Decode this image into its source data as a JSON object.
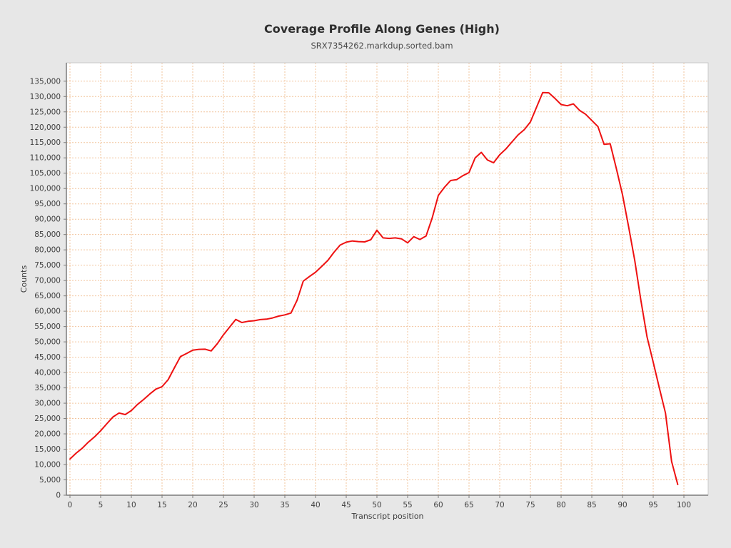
{
  "page": {
    "background": "#e7e7e7"
  },
  "chart_data": {
    "type": "line",
    "title": "Coverage Profile Along Genes (High)",
    "subtitle": "SRX7354262.markdup.sorted.bam",
    "xlabel": "Transcript position",
    "ylabel": "Counts",
    "xlim": [
      -0.58,
      103.95
    ],
    "ylim": [
      0,
      141000
    ],
    "x_ticks": [
      0,
      5,
      10,
      15,
      20,
      25,
      30,
      35,
      40,
      45,
      50,
      55,
      60,
      65,
      70,
      75,
      80,
      85,
      90,
      95,
      100
    ],
    "y_ticks": [
      0,
      5000,
      10000,
      15000,
      20000,
      25000,
      30000,
      35000,
      40000,
      45000,
      50000,
      55000,
      60000,
      65000,
      70000,
      75000,
      80000,
      85000,
      90000,
      95000,
      100000,
      105000,
      110000,
      115000,
      120000,
      125000,
      130000,
      135000
    ],
    "grid": true,
    "legend_position": "none",
    "series": [
      {
        "name": "coverage",
        "color": "#ee1111",
        "x_start": 0,
        "values": [
          11800,
          13700,
          15300,
          17300,
          19000,
          21000,
          23300,
          25500,
          26800,
          26300,
          27600,
          29600,
          31200,
          33000,
          34600,
          35400,
          37700,
          41500,
          45200,
          46200,
          47300,
          47550,
          47600,
          47050,
          49400,
          52300,
          54800,
          57300,
          56300,
          56700,
          56900,
          57250,
          57400,
          57800,
          58400,
          58800,
          59400,
          63600,
          69800,
          71300,
          72700,
          74600,
          76550,
          79200,
          81550,
          82500,
          82900,
          82700,
          82600,
          83300,
          86400,
          83900,
          83750,
          83900,
          83600,
          82300,
          84300,
          83400,
          84500,
          90400,
          97750,
          100400,
          102600,
          102900,
          104200,
          105200,
          110000,
          111800,
          109300,
          108400,
          111000,
          112900,
          115200,
          117500,
          119200,
          121700,
          126500,
          131300,
          131200,
          129400,
          127400,
          127000,
          127600,
          125500,
          124200,
          122200,
          120200,
          114400,
          114600,
          106500,
          98000,
          87500,
          76500,
          63500,
          51600,
          43400,
          35000,
          26800,
          11000,
          3500
        ]
      }
    ],
    "colors": {
      "plot_background": "#ffffff",
      "gridline": "#f2c59e",
      "axis_line": "#7c7c7c",
      "plot_border": "#c9c9c9",
      "tick_mark": "#7c7c7c",
      "line": "#ee1111"
    }
  }
}
